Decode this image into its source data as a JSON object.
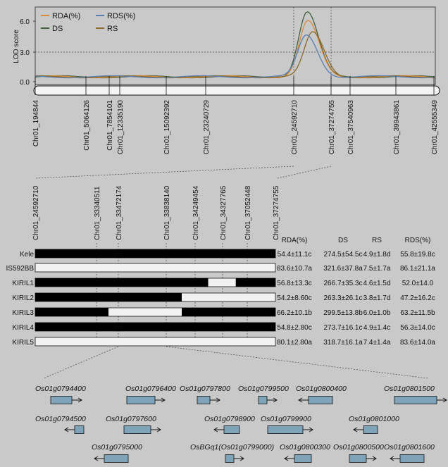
{
  "lod_panel": {
    "y_axis_label": "LOD score",
    "y_ticks": [
      "6.0",
      "3.0",
      "0.0"
    ],
    "legend": [
      {
        "label": "RDA(%)",
        "color": "#d98a3a"
      },
      {
        "label": "RDS(%)",
        "color": "#5a7fb0"
      },
      {
        "label": "DS",
        "color": "#3f5f3f"
      },
      {
        "label": "RS",
        "color": "#8a6a2a"
      }
    ],
    "markers": [
      "Chr01_194844",
      "Chr01_5064126",
      "Chr01_7854101",
      "Chr01_12335190",
      "Chr01_15092392",
      "Chr01_23240729",
      "Chr01_24592710",
      "Chr01_37274755",
      "Chr01_37540963",
      "Chr01_39943861",
      "Chr01_42555349"
    ]
  },
  "fine_map": {
    "markers": [
      "Chr01_24592710",
      "Chr01_33340511",
      "Chr01_33472174",
      "Chr01_33838140",
      "Chr01_34249454",
      "Chr01_34327765",
      "Chr01_37052448",
      "Chr01_37274755"
    ],
    "columns": [
      "RDA(%)",
      "DS",
      "RS",
      "RDS(%)"
    ],
    "rows": [
      {
        "name": "Kele",
        "values": [
          "54.4±11.1c",
          "274.5±54.5c",
          "4.9±1.8d",
          "55.8±19.8c"
        ],
        "blocks": [
          [
            0,
            1
          ]
        ]
      },
      {
        "name": "IS592BB",
        "values": [
          "83.6±10.7a",
          "321.6±37.8a",
          "7.5±1.7a",
          "86.1±21.1a"
        ],
        "blocks": []
      },
      {
        "name": "KIRIL1",
        "values": [
          "56.8±13.3c",
          "266.7±35.3c",
          "4.6±1.5d",
          "52.0±14.0"
        ],
        "blocks": [
          [
            0,
            0.72
          ],
          [
            0.835,
            1
          ]
        ]
      },
      {
        "name": "KIRIL2",
        "values": [
          "54.2±8.60c",
          "263.3±26.1c",
          "3.8±1.7d",
          "47.2±16.2c"
        ],
        "blocks": [
          [
            0,
            0.61
          ]
        ]
      },
      {
        "name": "KIRIL3",
        "values": [
          "66.2±10.1b",
          "299.5±13.8b",
          "6.0±1.0b",
          "63.2±11.5b"
        ],
        "blocks": [
          [
            0,
            0.305
          ],
          [
            0.61,
            1
          ]
        ]
      },
      {
        "name": "KIRIL4",
        "values": [
          "54.8±2.80c",
          "273.7±16.1c",
          "4.9±1.4c",
          "56.3±14.0c"
        ],
        "blocks": [
          [
            0,
            1
          ]
        ]
      },
      {
        "name": "KIRIL5",
        "values": [
          "80.1±2.80a",
          "318.7±16.1a",
          "7.4±1.4a",
          "83.6±14.0a"
        ],
        "blocks": []
      }
    ]
  },
  "genes": [
    {
      "name": "Os01g0794400",
      "dir": "right"
    },
    {
      "name": "Os01g0796400",
      "dir": "right"
    },
    {
      "name": "Os01g0797800",
      "dir": "right"
    },
    {
      "name": "Os01g0799500",
      "dir": "right"
    },
    {
      "name": "Os01g0800400",
      "dir": "left"
    },
    {
      "name": "Os01g0801500",
      "dir": "right"
    },
    {
      "name": "Os01g0794500",
      "dir": "left"
    },
    {
      "name": "Os01g0797600",
      "dir": "right"
    },
    {
      "name": "Os01g0798900",
      "dir": "left"
    },
    {
      "name": "Os01g0799900",
      "dir": "right"
    },
    {
      "name": "Os01g0801000",
      "dir": "left"
    },
    {
      "name": "Os01g0795000",
      "dir": "left"
    },
    {
      "name": "OsBGq1(Os01g0799000)",
      "dir": "right"
    },
    {
      "name": "Os01g0800300",
      "dir": "left"
    },
    {
      "name": "Os01g0800500",
      "dir": "right"
    },
    {
      "name": "Os01g0801600",
      "dir": "left"
    }
  ],
  "colors": {
    "background": "#c9c9c9",
    "gene_box": "#7fa3b8",
    "block_dark": "#000000",
    "block_light": "#f2f2f2"
  }
}
